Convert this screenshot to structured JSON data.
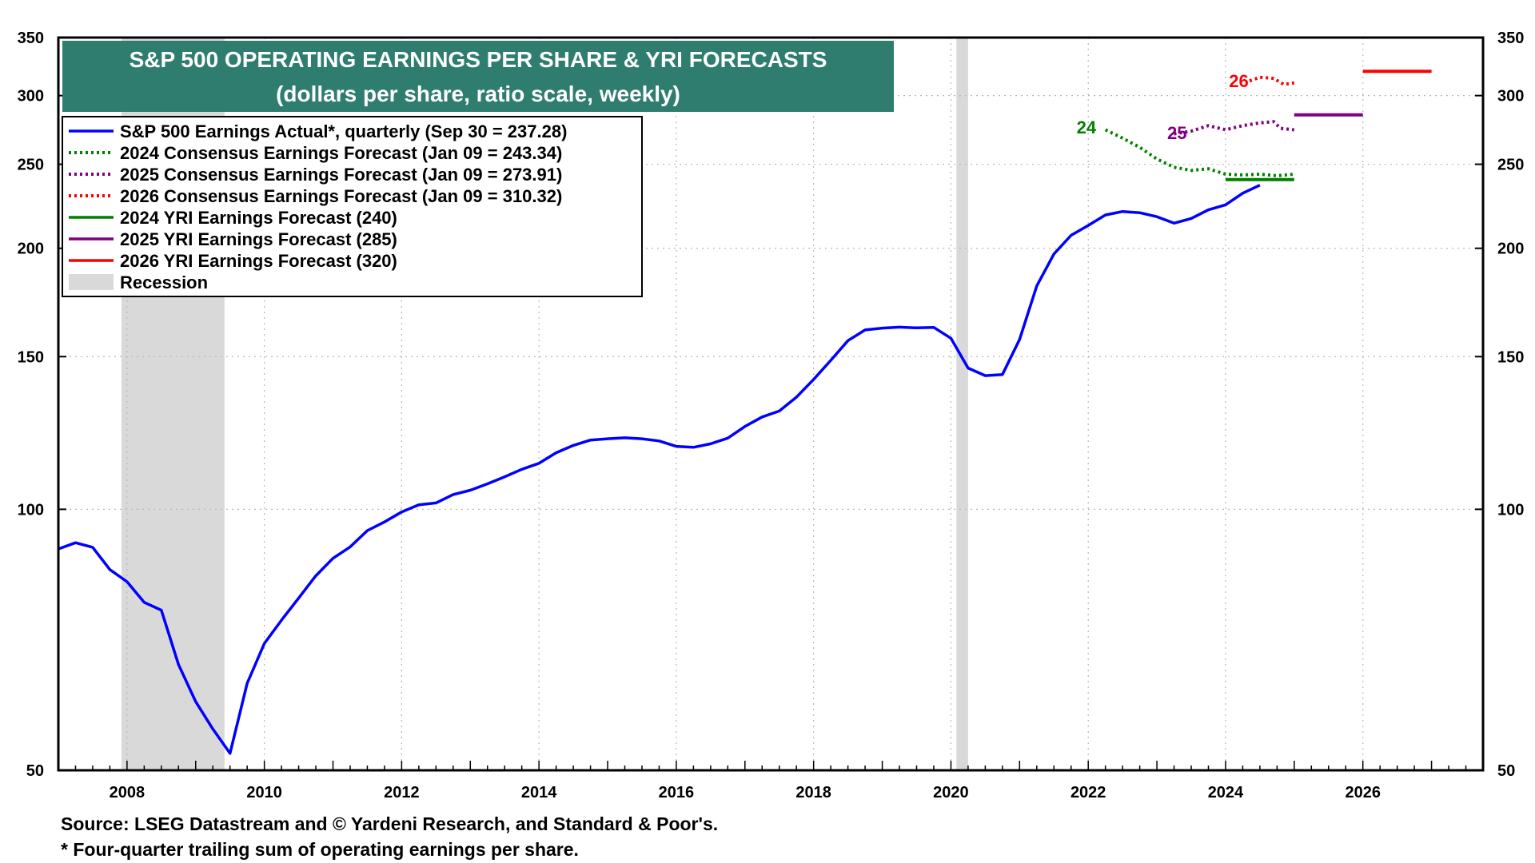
{
  "chart_data": {
    "type": "line",
    "title": "S&P 500 OPERATING EARNINGS PER SHARE & YRI FORECASTS",
    "subtitle": "(dollars per share, ratio scale, weekly)",
    "y_scale": "log",
    "ylim": [
      50,
      350
    ],
    "xlim": [
      2007.0,
      2027.75
    ],
    "y_ticks": [
      50,
      100,
      150,
      200,
      250,
      300,
      350
    ],
    "x_ticks": [
      2008,
      2010,
      2012,
      2014,
      2016,
      2018,
      2020,
      2022,
      2024,
      2026
    ],
    "colors": {
      "actual": "#0000ff",
      "cons2024": "#008000",
      "cons2025": "#800080",
      "cons2026": "#ff0000",
      "yri2024": "#008000",
      "yri2025": "#800080",
      "yri2026": "#ff0000",
      "recession": "#d9d9d9",
      "title_bg": "#2e7d6e"
    },
    "recessions": [
      {
        "start": 2007.92,
        "end": 2009.42
      },
      {
        "start": 2020.08,
        "end": 2020.25
      }
    ],
    "legend": [
      {
        "key": "actual",
        "label": "S&P 500 Earnings Actual*, quarterly (Sep 30 = 237.28)",
        "style": "solid"
      },
      {
        "key": "cons2024",
        "label": "2024 Consensus Earnings Forecast (Jan 09 = 243.34)",
        "style": "dotted"
      },
      {
        "key": "cons2025",
        "label": "2025 Consensus Earnings Forecast (Jan 09 = 273.91)",
        "style": "dotted"
      },
      {
        "key": "cons2026",
        "label": "2026 Consensus Earnings Forecast (Jan 09 = 310.32)",
        "style": "dotted"
      },
      {
        "key": "yri2024",
        "label": "2024 YRI Earnings Forecast (240)",
        "style": "solid"
      },
      {
        "key": "yri2025",
        "label": "2025 YRI Earnings Forecast (285)",
        "style": "solid"
      },
      {
        "key": "yri2026",
        "label": "2026 YRI Earnings Forecast (320)",
        "style": "solid"
      },
      {
        "key": "recession",
        "label": "Recession",
        "style": "box"
      }
    ],
    "series": [
      {
        "name": "S&P 500 Earnings Actual",
        "key": "actual",
        "style": "solid",
        "points": [
          [
            2007.0,
            90.0
          ],
          [
            2007.25,
            91.5
          ],
          [
            2007.5,
            90.4
          ],
          [
            2007.75,
            85.2
          ],
          [
            2008.0,
            82.5
          ],
          [
            2008.25,
            78.1
          ],
          [
            2008.5,
            76.5
          ],
          [
            2008.75,
            66.2
          ],
          [
            2009.0,
            60.0
          ],
          [
            2009.25,
            55.8
          ],
          [
            2009.5,
            52.3
          ],
          [
            2009.75,
            63.0
          ],
          [
            2010.0,
            70.0
          ],
          [
            2010.25,
            74.5
          ],
          [
            2010.5,
            79.0
          ],
          [
            2010.75,
            83.8
          ],
          [
            2011.0,
            87.8
          ],
          [
            2011.25,
            90.5
          ],
          [
            2011.5,
            94.5
          ],
          [
            2011.75,
            96.7
          ],
          [
            2012.0,
            99.3
          ],
          [
            2012.25,
            101.2
          ],
          [
            2012.5,
            101.7
          ],
          [
            2012.75,
            104.0
          ],
          [
            2013.0,
            105.2
          ],
          [
            2013.25,
            107.0
          ],
          [
            2013.5,
            109.0
          ],
          [
            2013.75,
            111.2
          ],
          [
            2014.0,
            113.0
          ],
          [
            2014.25,
            116.2
          ],
          [
            2014.5,
            118.5
          ],
          [
            2014.75,
            120.2
          ],
          [
            2015.0,
            120.6
          ],
          [
            2015.25,
            120.9
          ],
          [
            2015.5,
            120.6
          ],
          [
            2015.75,
            119.9
          ],
          [
            2016.0,
            118.2
          ],
          [
            2016.25,
            117.9
          ],
          [
            2016.5,
            119.0
          ],
          [
            2016.75,
            120.8
          ],
          [
            2017.0,
            124.6
          ],
          [
            2017.25,
            127.8
          ],
          [
            2017.5,
            129.8
          ],
          [
            2017.75,
            134.7
          ],
          [
            2018.0,
            141.2
          ],
          [
            2018.25,
            148.5
          ],
          [
            2018.5,
            156.5
          ],
          [
            2018.75,
            161.0
          ],
          [
            2019.0,
            161.8
          ],
          [
            2019.25,
            162.2
          ],
          [
            2019.5,
            161.9
          ],
          [
            2019.75,
            162.1
          ],
          [
            2020.0,
            157.5
          ],
          [
            2020.25,
            145.5
          ],
          [
            2020.5,
            142.6
          ],
          [
            2020.75,
            143.0
          ],
          [
            2021.0,
            157.0
          ],
          [
            2021.25,
            181.0
          ],
          [
            2021.5,
            197.0
          ],
          [
            2021.75,
            207.0
          ],
          [
            2022.0,
            212.5
          ],
          [
            2022.25,
            218.5
          ],
          [
            2022.5,
            220.5
          ],
          [
            2022.75,
            219.8
          ],
          [
            2023.0,
            217.5
          ],
          [
            2023.25,
            213.8
          ],
          [
            2023.5,
            216.5
          ],
          [
            2023.75,
            221.5
          ],
          [
            2024.0,
            224.5
          ],
          [
            2024.25,
            231.5
          ],
          [
            2024.5,
            236.5
          ]
        ]
      },
      {
        "name": "2024 Consensus Earnings Forecast",
        "key": "cons2024",
        "style": "dotted",
        "points": [
          [
            2022.25,
            274.0
          ],
          [
            2022.5,
            268.0
          ],
          [
            2022.75,
            261.5
          ],
          [
            2023.0,
            253.5
          ],
          [
            2023.25,
            248.0
          ],
          [
            2023.5,
            246.0
          ],
          [
            2023.75,
            247.0
          ],
          [
            2024.0,
            243.5
          ],
          [
            2024.25,
            243.0
          ],
          [
            2024.5,
            243.5
          ],
          [
            2024.75,
            242.5
          ],
          [
            2025.0,
            243.5
          ]
        ]
      },
      {
        "name": "2025 Consensus Earnings Forecast",
        "key": "cons2025",
        "style": "dotted",
        "points": [
          [
            2023.25,
            271.0
          ],
          [
            2023.5,
            273.0
          ],
          [
            2023.75,
            277.0
          ],
          [
            2024.0,
            274.0
          ],
          [
            2024.25,
            277.0
          ],
          [
            2024.5,
            279.0
          ],
          [
            2024.7,
            280.0
          ],
          [
            2024.8,
            275.0
          ],
          [
            2025.0,
            273.91
          ]
        ]
      },
      {
        "name": "2026 Consensus Earnings Forecast",
        "key": "cons2026",
        "style": "dotted",
        "points": [
          [
            2024.35,
            312.0
          ],
          [
            2024.5,
            315.0
          ],
          [
            2024.7,
            314.0
          ],
          [
            2024.85,
            309.0
          ],
          [
            2025.0,
            310.32
          ]
        ]
      },
      {
        "name": "2024 YRI Earnings Forecast",
        "key": "yri2024",
        "style": "solid",
        "points": [
          [
            2024.0,
            240
          ],
          [
            2025.0,
            240
          ]
        ]
      },
      {
        "name": "2025 YRI Earnings Forecast",
        "key": "yri2025",
        "style": "solid",
        "points": [
          [
            2025.0,
            285
          ],
          [
            2026.0,
            285
          ]
        ]
      },
      {
        "name": "2026 YRI Earnings Forecast",
        "key": "yri2026",
        "style": "solid",
        "points": [
          [
            2026.0,
            320
          ],
          [
            2027.0,
            320
          ]
        ]
      }
    ],
    "annotations": [
      {
        "text": "24",
        "key": "cons2024",
        "x": 2021.83,
        "y": 276
      },
      {
        "text": "25",
        "key": "cons2025",
        "x": 2023.15,
        "y": 272
      },
      {
        "text": "26",
        "key": "cons2026",
        "x": 2024.05,
        "y": 312
      }
    ]
  },
  "footnotes": {
    "source": "Source: LSEG Datastream and © Yardeni Research, and Standard & Poor's.",
    "note": "* Four-quarter trailing sum of operating earnings per share."
  }
}
